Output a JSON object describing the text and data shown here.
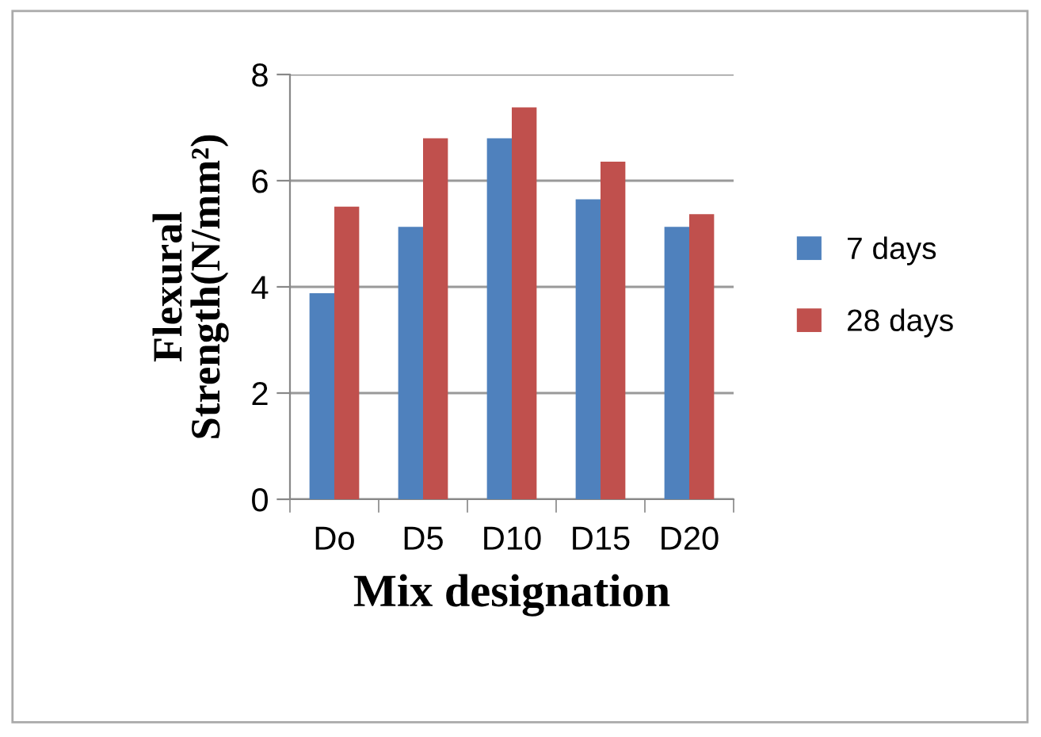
{
  "chart_data": {
    "type": "bar",
    "xlabel": "Mix designation",
    "ylabel": "Flexural\nStrength(N/mm²)",
    "categories": [
      "Do",
      "D5",
      "D10",
      "D15",
      "D20"
    ],
    "series": [
      {
        "name": "7 days",
        "color": "#4f81bd",
        "values": [
          3.88,
          5.13,
          6.8,
          5.65,
          5.13
        ]
      },
      {
        "name": "28 days",
        "color": "#c0504d",
        "values": [
          5.51,
          6.8,
          7.38,
          6.36,
          5.37
        ]
      }
    ],
    "ylim": [
      0,
      8
    ],
    "yticks": [
      0,
      2,
      4,
      6,
      8
    ],
    "grid": "y",
    "legend": "right"
  }
}
